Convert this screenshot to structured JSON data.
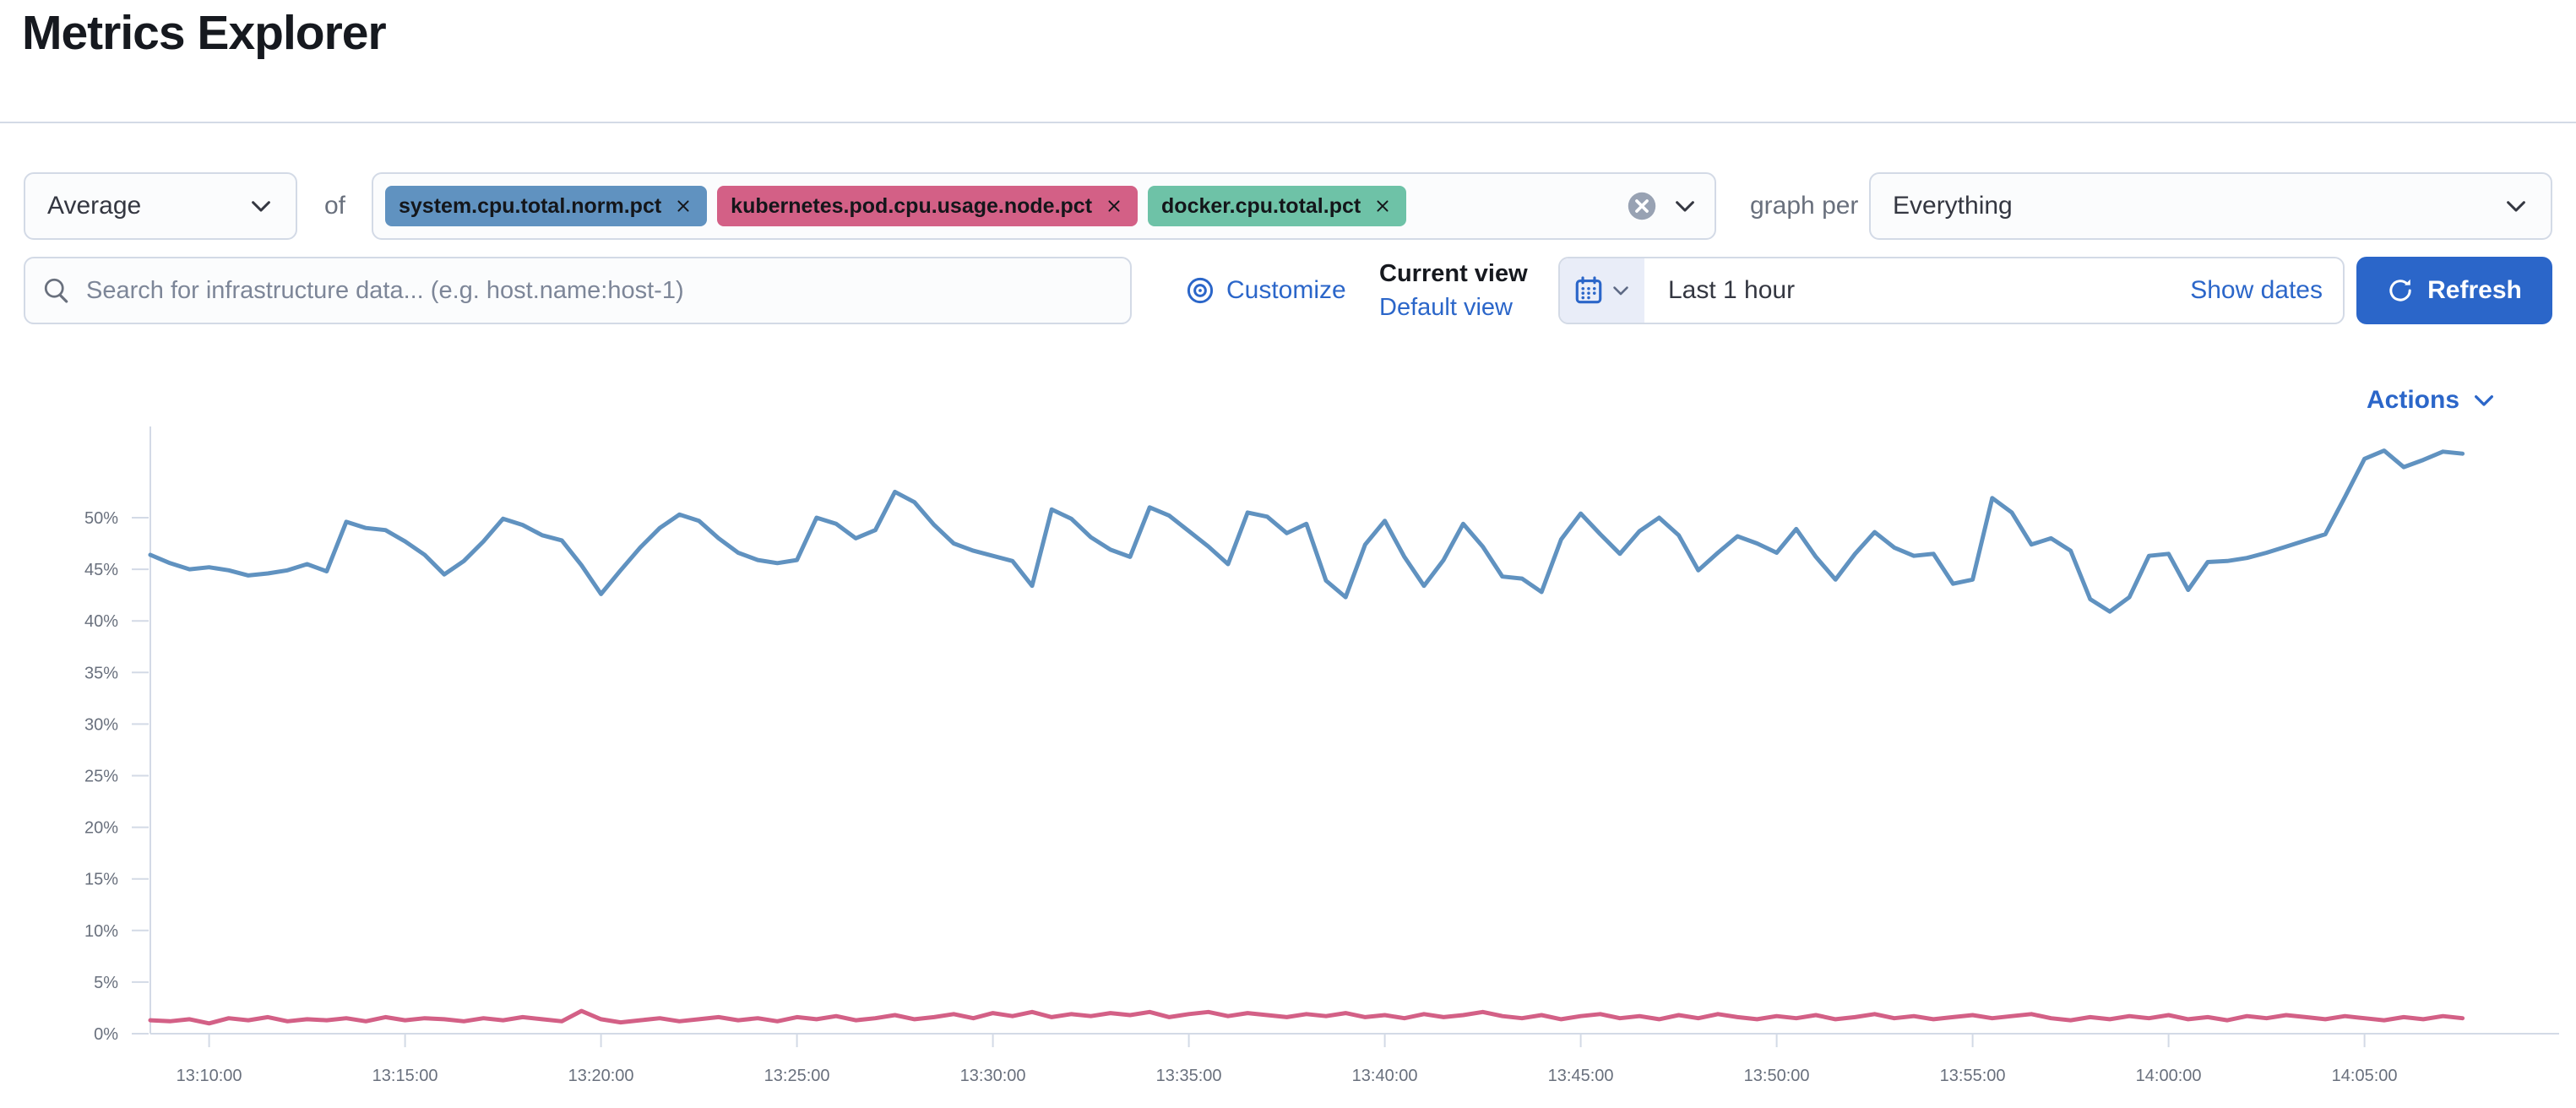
{
  "page": {
    "title": "Metrics Explorer"
  },
  "toolbar": {
    "aggregation": {
      "value": "Average"
    },
    "of_label": "of",
    "metrics": [
      {
        "label": "system.cpu.total.norm.pct",
        "color": "#6092C0"
      },
      {
        "label": "kubernetes.pod.cpu.usage.node.pct",
        "color": "#D36086"
      },
      {
        "label": "docker.cpu.total.pct",
        "color": "#6EC2A7"
      }
    ],
    "graph_per_label": "graph per",
    "group_by": {
      "value": "Everything"
    }
  },
  "filter_bar": {
    "search": {
      "placeholder": "Search for infrastructure data... (e.g. host.name:host-1)"
    },
    "customize_label": "Customize",
    "view_picker": {
      "current_label": "Current view",
      "selected_view": "Default view"
    },
    "time_picker": {
      "value": "Last 1 hour",
      "show_dates_label": "Show dates"
    },
    "refresh_label": "Refresh"
  },
  "actions_label": "Actions",
  "icons": {
    "aggregation_dropdown": "chevron-down",
    "group_by_dropdown": "chevron-down",
    "search": "magnifier",
    "customize": "bullseye",
    "time_picker": "calendar",
    "time_picker_dropdown": "chevron-down",
    "clear_selection": "circled-x",
    "remove_metric": "x",
    "refresh": "refresh-arrow",
    "actions": "chevron-down"
  },
  "colors": {
    "accent_blue": "#2B66C9",
    "border": "#D3DAE6",
    "calendar_segment_bg": "#E9EDF8",
    "clear_button_gray": "#98A2B3",
    "axis_label": "#69707D",
    "muted_text": "#69707D",
    "body_text": "#343741",
    "title_text": "#16191F"
  },
  "chart_data": {
    "type": "line",
    "title": "",
    "xlabel": "",
    "ylabel": "",
    "grid": false,
    "legend": "none",
    "x_start_label": "13:08:30",
    "interval_seconds": 30,
    "x_tick_labels": [
      "13:10:00",
      "13:15:00",
      "13:20:00",
      "13:25:00",
      "13:30:00",
      "13:35:00",
      "13:40:00",
      "13:45:00",
      "13:50:00",
      "13:55:00",
      "14:00:00",
      "14:05:00"
    ],
    "y_tick_labels": [
      "0%",
      "5%",
      "10%",
      "15%",
      "20%",
      "25%",
      "30%",
      "35%",
      "40%",
      "45%",
      "50%"
    ],
    "ylim": [
      0,
      57.5
    ],
    "series": [
      {
        "name": "system.cpu.total.norm.pct",
        "color": "#6092C0",
        "unit": "%",
        "values": [
          46.4,
          45.6,
          45.0,
          45.2,
          44.9,
          44.4,
          44.6,
          44.9,
          45.5,
          44.8,
          49.6,
          49.0,
          48.8,
          47.7,
          46.4,
          44.5,
          45.8,
          47.7,
          49.9,
          49.3,
          48.3,
          47.8,
          45.4,
          42.6,
          44.9,
          47.1,
          49.0,
          50.3,
          49.7,
          48.0,
          46.6,
          45.9,
          45.6,
          45.9,
          50.0,
          49.4,
          48.0,
          48.8,
          52.5,
          51.5,
          49.3,
          47.5,
          46.8,
          46.3,
          45.8,
          43.4,
          50.8,
          49.9,
          48.1,
          46.9,
          46.2,
          51.0,
          50.2,
          48.7,
          47.2,
          45.5,
          50.5,
          50.1,
          48.5,
          49.4,
          43.9,
          42.3,
          47.4,
          49.7,
          46.2,
          43.4,
          45.9,
          49.4,
          47.2,
          44.3,
          44.1,
          42.8,
          47.9,
          50.4,
          48.4,
          46.5,
          48.7,
          50.0,
          48.3,
          44.9,
          46.6,
          48.2,
          47.5,
          46.6,
          48.9,
          46.2,
          44.0,
          46.5,
          48.6,
          47.1,
          46.3,
          46.5,
          43.6,
          44.0,
          51.9,
          50.5,
          47.4,
          48.0,
          46.8,
          42.1,
          40.9,
          42.3,
          46.3,
          46.5,
          43.0,
          45.7,
          45.8,
          46.1,
          46.6,
          47.2,
          47.8,
          48.4,
          52.0,
          55.7,
          56.5,
          54.9,
          55.6,
          56.4,
          56.2
        ]
      },
      {
        "name": "kubernetes.pod.cpu.usage.node.pct",
        "color": "#D36086",
        "unit": "%",
        "values": [
          1.3,
          1.2,
          1.4,
          1.0,
          1.5,
          1.3,
          1.6,
          1.2,
          1.4,
          1.3,
          1.5,
          1.2,
          1.6,
          1.3,
          1.5,
          1.4,
          1.2,
          1.5,
          1.3,
          1.6,
          1.4,
          1.2,
          2.2,
          1.4,
          1.1,
          1.3,
          1.5,
          1.2,
          1.4,
          1.6,
          1.3,
          1.5,
          1.2,
          1.6,
          1.4,
          1.7,
          1.3,
          1.5,
          1.8,
          1.4,
          1.6,
          1.9,
          1.5,
          2.0,
          1.7,
          2.1,
          1.6,
          1.9,
          1.7,
          2.0,
          1.8,
          2.1,
          1.6,
          1.9,
          2.1,
          1.7,
          2.0,
          1.8,
          1.6,
          1.9,
          1.7,
          2.0,
          1.6,
          1.8,
          1.5,
          1.9,
          1.6,
          1.8,
          2.1,
          1.7,
          1.5,
          1.8,
          1.4,
          1.7,
          1.9,
          1.5,
          1.7,
          1.4,
          1.8,
          1.5,
          1.9,
          1.6,
          1.4,
          1.7,
          1.5,
          1.8,
          1.4,
          1.6,
          1.9,
          1.5,
          1.7,
          1.4,
          1.6,
          1.8,
          1.5,
          1.7,
          1.9,
          1.5,
          1.3,
          1.6,
          1.4,
          1.7,
          1.5,
          1.8,
          1.4,
          1.6,
          1.3,
          1.7,
          1.5,
          1.8,
          1.6,
          1.4,
          1.7,
          1.5,
          1.3,
          1.6,
          1.4,
          1.7,
          1.5
        ]
      }
    ]
  }
}
